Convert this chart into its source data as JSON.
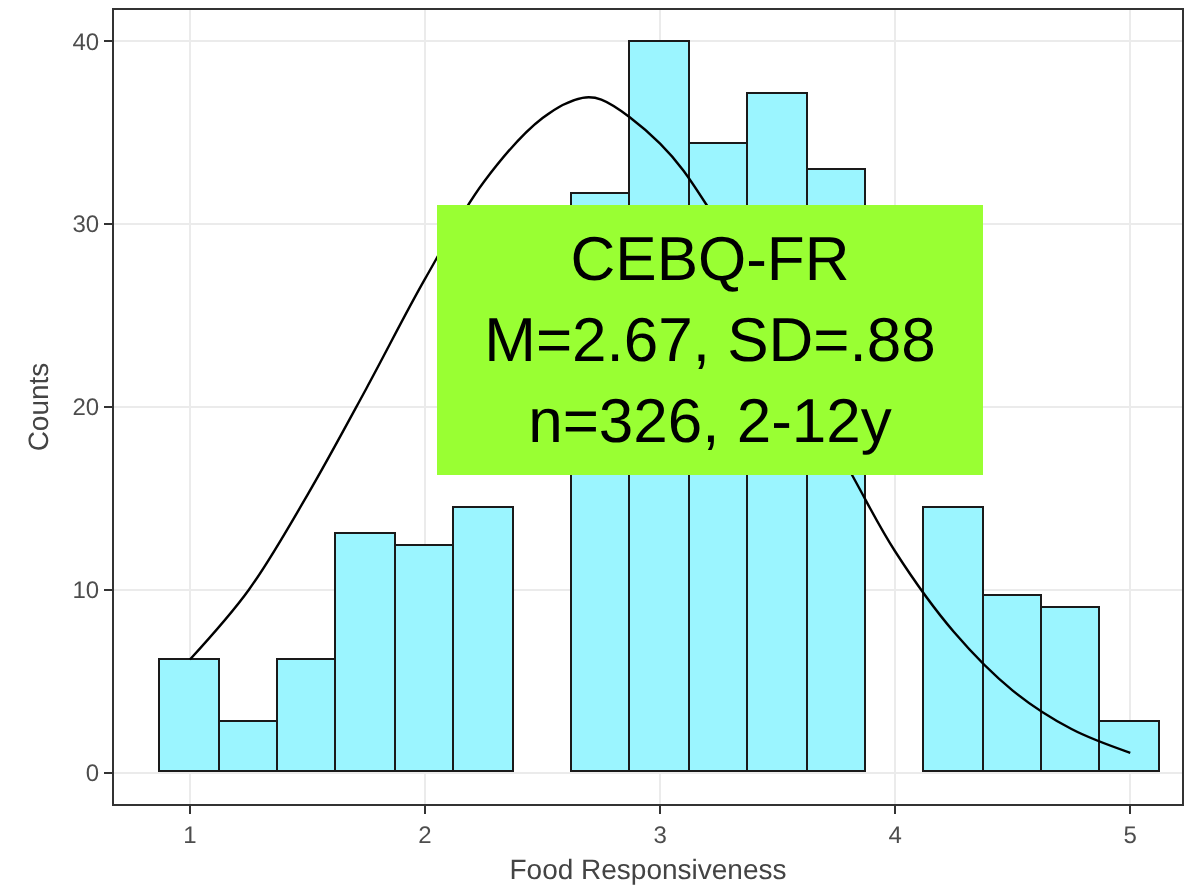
{
  "chart_data": {
    "type": "histogram",
    "xlabel": "Food Responsiveness",
    "ylabel": "Counts",
    "bins": [
      0.875,
      1.125,
      1.375,
      1.625,
      1.875,
      2.125,
      2.375,
      2.625,
      2.875,
      3.125,
      3.375,
      3.625,
      3.875,
      4.125,
      4.375,
      4.625,
      4.875,
      5.125
    ],
    "values": [
      6.2,
      2.8,
      6.2,
      13.1,
      12.4,
      14.5,
      null,
      31.6,
      39.9,
      34.4,
      37.1,
      33.0,
      null,
      14.5,
      9.7,
      9.0,
      2.8
    ],
    "color": "#9bf5ff",
    "series": [
      {
        "type": "line",
        "color": "#000000",
        "x": [
          1.0,
          1.25,
          1.5,
          1.75,
          2.0,
          2.25,
          2.5,
          2.67,
          2.75,
          3.0,
          3.2,
          3.82,
          4.0,
          4.25,
          4.5,
          4.75,
          5.0
        ],
        "values": [
          6.2,
          10.0,
          15.2,
          21.0,
          27.0,
          32.3,
          35.8,
          36.9,
          36.8,
          34.4,
          31.0,
          16.2,
          12.1,
          7.7,
          4.5,
          2.4,
          1.1
        ]
      }
    ],
    "xlim": [
      0.677,
      5.22
    ],
    "ylim": [
      -1.7,
      41.7
    ],
    "xticks": [
      1,
      2,
      3,
      4,
      5
    ],
    "yticks": [
      0,
      10,
      20,
      30,
      40
    ],
    "grid": true,
    "marker": "none",
    "line_style": "solid",
    "annotations": [
      "CEBQ-FR\nM=2.67, SD=.88\nn=326, 2-12y"
    ]
  }
}
